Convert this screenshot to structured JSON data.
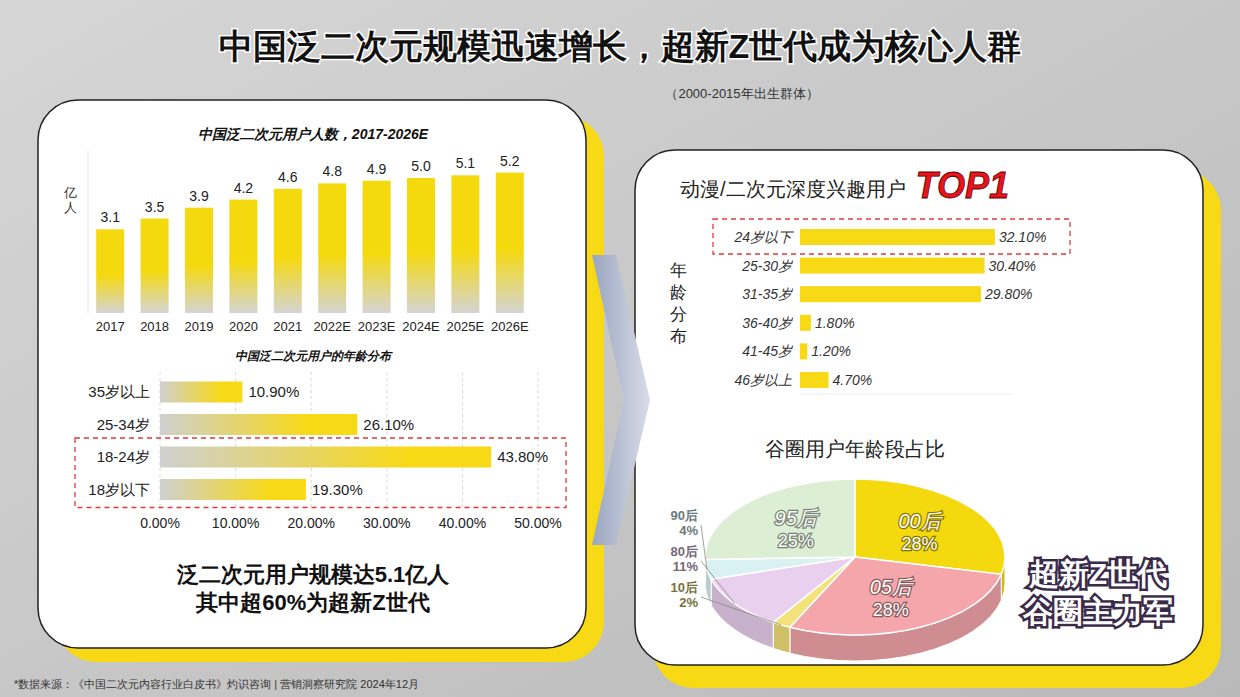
{
  "title": "中国泛二次元规模迅速增长，超新Z世代成为核心人群",
  "subtitle": "（2000-2015年出生群体）",
  "source": "*数据来源：《中国二次元内容行业白皮书》灼识咨询 | 营销洞察研究院 2024年12月",
  "summary": [
    "泛二次元用户规模达5.1亿人",
    "其中超60%为超新Z世代"
  ],
  "callout": [
    "超新Z世代",
    "谷圈主力军"
  ],
  "chart_data": [
    {
      "type": "bar",
      "title": "中国泛二次元用户人数，2017-2026E",
      "y_label": "亿人",
      "categories": [
        "2017",
        "2018",
        "2019",
        "2020",
        "2021",
        "2022E",
        "2023E",
        "2024E",
        "2025E",
        "2026E"
      ],
      "values": [
        3.1,
        3.5,
        3.9,
        4.2,
        4.6,
        4.8,
        4.9,
        5.0,
        5.1,
        5.2
      ],
      "value_labels": [
        "3.1",
        "3.5",
        "3.9",
        "4.2",
        "4.6",
        "4.8",
        "4.9",
        "5.0",
        "5.1",
        "5.2"
      ],
      "color": "#f5d90f",
      "ylim": [
        0,
        6
      ],
      "data_labels": true,
      "tick_labels": "x"
    },
    {
      "type": "bar",
      "orientation": "horizontal",
      "title": "中国泛二次元用户的年龄分布",
      "categories": [
        "35岁以上",
        "25-34岁",
        "18-24岁",
        "18岁以下"
      ],
      "values": [
        10.9,
        26.1,
        43.8,
        19.3
      ],
      "value_labels": [
        "10.90%",
        "26.10%",
        "43.80%",
        "19.30%"
      ],
      "color": "#f7d916",
      "xlim": [
        0,
        50
      ],
      "xticks": [
        {
          "value": 0,
          "label": "0.00%"
        },
        {
          "value": 10,
          "label": "10.00%"
        },
        {
          "value": 20,
          "label": "20.00%"
        },
        {
          "value": 30,
          "label": "30.00%"
        },
        {
          "value": 40,
          "label": "40.00%"
        },
        {
          "value": 50,
          "label": "50.00%"
        }
      ],
      "grid": true,
      "data_labels": true
    },
    {
      "type": "bar",
      "orientation": "horizontal",
      "title": "动漫/二次元深度兴趣用户",
      "annotation": "TOP1",
      "y_label": "年龄分布",
      "categories": [
        "24岁以下",
        "25-30岁",
        "31-35岁",
        "36-40岁",
        "41-45岁",
        "46岁以上"
      ],
      "values": [
        32.1,
        30.4,
        29.8,
        1.8,
        1.2,
        4.7
      ],
      "value_labels": [
        "32.10%",
        "30.40%",
        "29.80%",
        "1.80%",
        "1.20%",
        "4.70%"
      ],
      "color": "#f7d916",
      "xlim": [
        0,
        35
      ],
      "data_labels": true,
      "tick_labels": "y"
    },
    {
      "type": "pie",
      "title": "谷圈用户年龄段占比",
      "categories": [
        "00后",
        "05后",
        "10后",
        "80后",
        "90后",
        "95后"
      ],
      "values": [
        28,
        28,
        2,
        11,
        4,
        25
      ],
      "value_labels": [
        "28%",
        "28%",
        "2%",
        "11%",
        "4%",
        "25%"
      ],
      "colors": [
        "#f5d90f",
        "#f4a6aa",
        "#f3e27a",
        "#ead0ef",
        "#d9f1f3",
        "#dcefd4"
      ],
      "data_labels": true
    }
  ]
}
